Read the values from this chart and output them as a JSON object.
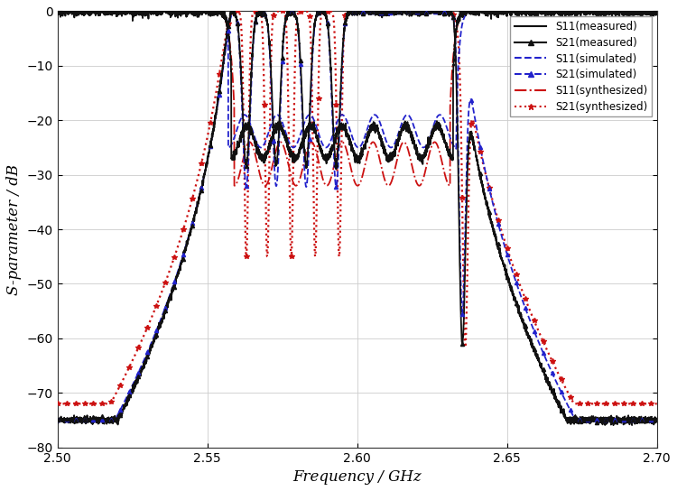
{
  "xlim": [
    2.5,
    2.7
  ],
  "ylim": [
    -80,
    0
  ],
  "xticks": [
    2.5,
    2.55,
    2.6,
    2.65,
    2.7
  ],
  "yticks": [
    0,
    -10,
    -20,
    -30,
    -40,
    -50,
    -60,
    -70,
    -80
  ],
  "xlabel": "Frequency / GHz",
  "ylabel": "S-parameter / dB",
  "background_color": "#ffffff",
  "grid_color": "#cccccc",
  "passband_low": 2.558,
  "passband_high": 2.632,
  "fig_width": 7.5,
  "fig_height": 5.44,
  "colors": {
    "measured": "#111111",
    "simulated": "#2222cc",
    "synthesized": "#cc1111"
  }
}
